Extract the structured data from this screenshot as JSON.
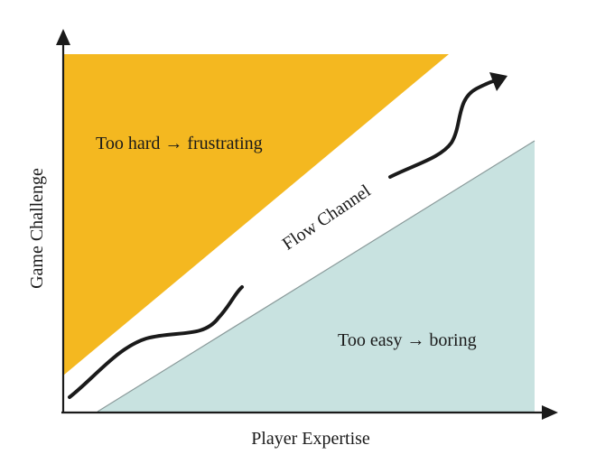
{
  "diagram": {
    "y_axis_label": "Game Challenge",
    "x_axis_label": "Player Expertise",
    "zones": {
      "too_hard": {
        "label": "Too hard → frustrating",
        "color": "#f4b820"
      },
      "flow": {
        "label": "Flow Channel",
        "color": "#ffffff"
      },
      "too_easy": {
        "label": "Too easy → boring",
        "color": "#c8e2e0"
      }
    },
    "colors": {
      "axis": "#1a1a1a",
      "path": "#1a1a1a",
      "edge": "#8a9a9a"
    }
  }
}
